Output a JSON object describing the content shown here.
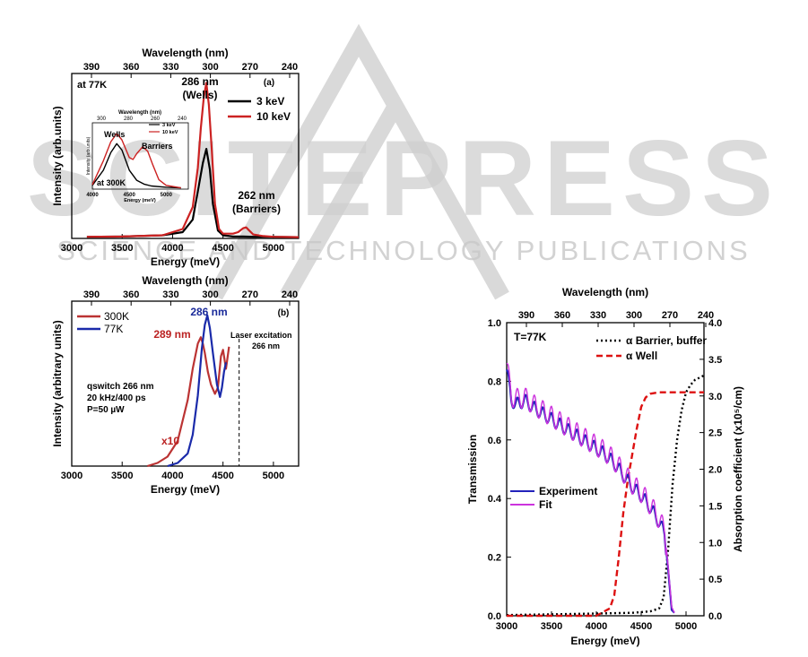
{
  "watermark": {
    "logo_text": "SCITEPRESS",
    "tagline": "SCIENCE AND TECHNOLOGY PUBLICATIONS",
    "color": "#c8c8c8"
  },
  "chart_data": [
    {
      "type": "line",
      "panel_label": "(a)",
      "xlabel": "Energy (meV)",
      "ylabel": "Intensity (arb.units)",
      "top_axis_label": "Wavelength (nm)",
      "xlim": [
        3000,
        5250
      ],
      "x_ticks": [
        3000,
        3500,
        4000,
        4500,
        5000
      ],
      "top_ticks": [
        390,
        360,
        330,
        300,
        270,
        240
      ],
      "ylim": [
        0,
        1.05
      ],
      "legend_position": "top-right",
      "annotations": [
        {
          "text": "at 77K",
          "x": 3050,
          "y": 1.0
        },
        {
          "text": "286 nm",
          "x": 4250,
          "y": 1.03
        },
        {
          "text": "(Wells)",
          "x": 4250,
          "y": 0.95
        },
        {
          "text": "262 nm",
          "x": 4800,
          "y": 0.2
        },
        {
          "text": "(Barriers)",
          "x": 4800,
          "y": 0.12
        }
      ],
      "series": [
        {
          "name": "3 keV",
          "color": "#000000",
          "x": [
            3150,
            3500,
            3900,
            4100,
            4200,
            4250,
            4300,
            4335,
            4370,
            4400,
            4450,
            4500,
            4600,
            4700,
            4800,
            5000,
            5250
          ],
          "y": [
            0.01,
            0.012,
            0.02,
            0.04,
            0.12,
            0.3,
            0.48,
            0.57,
            0.44,
            0.22,
            0.05,
            0.02,
            0.012,
            0.012,
            0.01,
            0.01,
            0.008
          ]
        },
        {
          "name": "10 keV",
          "color": "#cc2222",
          "x": [
            3150,
            3500,
            3900,
            4100,
            4200,
            4250,
            4280,
            4310,
            4335,
            4360,
            4390,
            4420,
            4460,
            4500,
            4600,
            4650,
            4700,
            4730,
            4760,
            4800,
            4900,
            5000,
            5250
          ],
          "y": [
            0.01,
            0.012,
            0.02,
            0.06,
            0.2,
            0.45,
            0.7,
            0.9,
            0.99,
            0.85,
            0.55,
            0.22,
            0.06,
            0.03,
            0.03,
            0.04,
            0.065,
            0.07,
            0.05,
            0.025,
            0.015,
            0.01,
            0.008
          ]
        }
      ],
      "inset": {
        "annotation": "at 300K",
        "xlabel": "Energy (meV)",
        "ylabel": "Intensity (arb.units)",
        "top_axis_label": "Wavelength (nm)",
        "xlim": [
          4000,
          5300
        ],
        "x_ticks": [
          4000,
          4500,
          5000
        ],
        "top_ticks": [
          300,
          280,
          260,
          240
        ],
        "ylim": [
          0,
          1.05
        ],
        "labels": [
          "Wells",
          "Barriers"
        ],
        "series": [
          {
            "name": "3 keV",
            "color": "#000000",
            "x": [
              4000,
              4150,
              4250,
              4330,
              4400,
              4500,
              4600,
              4700,
              4800,
              5000,
              5200
            ],
            "y": [
              0.06,
              0.3,
              0.58,
              0.72,
              0.62,
              0.3,
              0.14,
              0.08,
              0.05,
              0.03,
              0.02
            ]
          },
          {
            "name": "10 keV",
            "color": "#cc2222",
            "x": [
              4000,
              4150,
              4250,
              4330,
              4400,
              4500,
              4550,
              4600,
              4680,
              4750,
              4820,
              4900,
              5000,
              5200
            ],
            "y": [
              0.07,
              0.45,
              0.75,
              0.88,
              0.78,
              0.5,
              0.47,
              0.56,
              0.67,
              0.6,
              0.38,
              0.15,
              0.06,
              0.02
            ]
          }
        ]
      }
    },
    {
      "type": "line",
      "panel_label": "(b)",
      "xlabel": "Energy (meV)",
      "ylabel": "Intensity (arbitrary units)",
      "top_axis_label": "Wavelength (nm)",
      "xlim": [
        3000,
        5250
      ],
      "x_ticks": [
        3000,
        3500,
        4000,
        4500,
        5000
      ],
      "top_ticks": [
        390,
        360,
        330,
        300,
        270,
        240
      ],
      "ylim": [
        0,
        1.05
      ],
      "legend_position": "top-left",
      "annotations": [
        {
          "text": "286 nm",
          "x": 4220,
          "y": 0.96,
          "color": "#1a2a9a"
        },
        {
          "text": "289 nm",
          "x": 3730,
          "y": 0.86,
          "color": "#bb2222"
        },
        {
          "text": "Laser excitation",
          "x": 4700,
          "y": 0.9
        },
        {
          "text": "266 nm",
          "x": 4850,
          "y": 0.82
        },
        {
          "text": "qswitch 266 nm",
          "x": 3100,
          "y": 0.55
        },
        {
          "text": "20 kHz/400 ps",
          "x": 3100,
          "y": 0.48
        },
        {
          "text": "P=50 µW",
          "x": 3100,
          "y": 0.41
        },
        {
          "text": "x10",
          "x": 3700,
          "y": 0.08,
          "color": "#bb2222"
        }
      ],
      "laser_line_x": 4660,
      "series": [
        {
          "name": "300K",
          "color": "#bb3333",
          "x": [
            3750,
            3850,
            3950,
            4050,
            4150,
            4200,
            4250,
            4280,
            4300,
            4320,
            4350,
            4380,
            4420,
            4450,
            4480,
            4500,
            4530,
            4560
          ],
          "y": [
            0.0,
            0.02,
            0.06,
            0.16,
            0.42,
            0.62,
            0.78,
            0.82,
            0.78,
            0.72,
            0.6,
            0.52,
            0.46,
            0.5,
            0.7,
            0.74,
            0.62,
            0.76
          ]
        },
        {
          "name": "77K",
          "color": "#1a2aaa",
          "x": [
            3950,
            4050,
            4150,
            4200,
            4250,
            4290,
            4320,
            4345,
            4370,
            4400,
            4440,
            4470,
            4490,
            4510,
            4530
          ],
          "y": [
            0.0,
            0.02,
            0.08,
            0.2,
            0.45,
            0.75,
            0.9,
            0.96,
            0.88,
            0.72,
            0.52,
            0.44,
            0.5,
            0.6,
            0.66
          ]
        }
      ]
    },
    {
      "type": "line",
      "xlabel": "Energy (meV)",
      "ylabel": "Transmission",
      "y2label": "Absorption coefficient (x10⁵/cm)",
      "top_axis_label": "Wavelength (nm)",
      "xlim": [
        3000,
        5200
      ],
      "x_ticks": [
        3000,
        3500,
        4000,
        4500,
        5000
      ],
      "top_ticks": [
        390,
        360,
        330,
        300,
        270,
        240
      ],
      "ylim": [
        0,
        1.0
      ],
      "y_ticks": [
        0.0,
        0.2,
        0.4,
        0.6,
        0.8,
        1.0
      ],
      "y2lim": [
        0,
        4.0
      ],
      "y2_ticks": [
        0.0,
        0.5,
        1.0,
        1.5,
        2.0,
        2.5,
        3.0,
        3.5,
        4.0
      ],
      "annotation": "T=77K",
      "legend_position": "top-right",
      "series": [
        {
          "name": "α Barrier, buffer",
          "axis": "right",
          "color": "#000000",
          "dash": "dotted",
          "x": [
            3000,
            3500,
            4000,
            4400,
            4600,
            4700,
            4750,
            4800,
            4850,
            4900,
            4950,
            5000,
            5050,
            5100,
            5200
          ],
          "y": [
            0.01,
            0.02,
            0.03,
            0.04,
            0.06,
            0.1,
            0.25,
            0.9,
            1.8,
            2.4,
            2.8,
            3.05,
            3.15,
            3.22,
            3.28
          ]
        },
        {
          "name": "α Well",
          "axis": "right",
          "color": "#dd1111",
          "dash": "dashed",
          "x": [
            3000,
            3500,
            4000,
            4150,
            4200,
            4250,
            4300,
            4350,
            4400,
            4450,
            4500,
            4550,
            4600,
            4700,
            4800,
            5000,
            5200
          ],
          "y": [
            0.0,
            0.0,
            0.0,
            0.1,
            0.28,
            0.8,
            1.4,
            1.85,
            2.2,
            2.55,
            2.85,
            2.98,
            3.03,
            3.05,
            3.05,
            3.05,
            3.05
          ]
        },
        {
          "name": "Experiment",
          "axis": "left",
          "color": "#2222bb",
          "oscillating": true,
          "x": [
            3000,
            3050,
            3100,
            3200,
            3300,
            3400,
            3500,
            3600,
            3700,
            3800,
            3900,
            4000,
            4100,
            4200,
            4300,
            4400,
            4500,
            4600,
            4700,
            4760,
            4800,
            4840,
            4870
          ],
          "y": [
            0.84,
            0.74,
            0.72,
            0.735,
            0.71,
            0.69,
            0.67,
            0.65,
            0.63,
            0.61,
            0.59,
            0.57,
            0.55,
            0.52,
            0.48,
            0.44,
            0.41,
            0.37,
            0.32,
            0.28,
            0.16,
            0.02,
            0.01
          ]
        },
        {
          "name": "Fit",
          "axis": "left",
          "color": "#cc33dd",
          "oscillating": true,
          "x": [
            3000,
            3050,
            3100,
            3200,
            3300,
            3400,
            3500,
            3600,
            3700,
            3800,
            3900,
            4000,
            4100,
            4200,
            4300,
            4400,
            4500,
            4600,
            4700,
            4760,
            4800,
            4840,
            4870
          ],
          "y": [
            0.86,
            0.75,
            0.74,
            0.745,
            0.72,
            0.7,
            0.68,
            0.66,
            0.64,
            0.62,
            0.6,
            0.58,
            0.56,
            0.53,
            0.49,
            0.45,
            0.42,
            0.38,
            0.33,
            0.29,
            0.17,
            0.03,
            0.01
          ]
        }
      ]
    }
  ]
}
